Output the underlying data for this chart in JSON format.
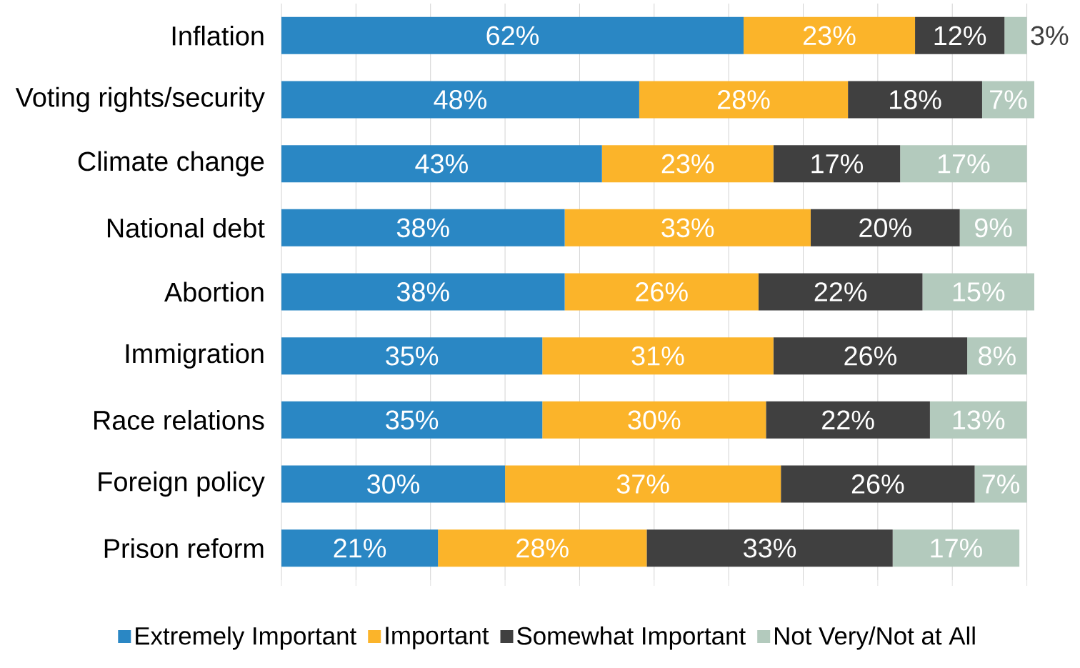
{
  "chart_data": {
    "type": "bar",
    "orientation": "horizontal",
    "stacked": true,
    "categories": [
      "Inflation",
      "Voting rights/security",
      "Climate change",
      "National debt",
      "Abortion",
      "Immigration",
      "Race relations",
      "Foreign policy",
      "Prison reform"
    ],
    "series": [
      {
        "name": "Extremely Important",
        "color": "#2a87c4",
        "values": [
          62,
          48,
          43,
          38,
          38,
          35,
          35,
          30,
          21
        ],
        "value_labels": [
          "62%",
          "48%",
          "43%",
          "38%",
          "38%",
          "35%",
          "35%",
          "30%",
          "21%"
        ]
      },
      {
        "name": "Important",
        "color": "#fbb42a",
        "values": [
          23,
          28,
          23,
          33,
          26,
          31,
          30,
          37,
          28
        ],
        "value_labels": [
          "23%",
          "28%",
          "23%",
          "33%",
          "26%",
          "31%",
          "30%",
          "37%",
          "28%"
        ]
      },
      {
        "name": "Somewhat Important",
        "color": "#404040",
        "values": [
          12,
          18,
          17,
          20,
          22,
          26,
          22,
          26,
          33
        ],
        "value_labels": [
          "12%",
          "18%",
          "17%",
          "20%",
          "22%",
          "26%",
          "22%",
          "26%",
          "33%"
        ]
      },
      {
        "name": "Not Very/Not at All",
        "color": "#b3cabd",
        "values": [
          3,
          7,
          17,
          9,
          15,
          8,
          13,
          7,
          17
        ],
        "value_labels": [
          "3%",
          "7%",
          "17%",
          "9%",
          "15%",
          "8%",
          "13%",
          "7%",
          "17%"
        ]
      }
    ],
    "xlim": [
      0,
      101
    ],
    "xticks": [
      {
        "value": 0,
        "label": null
      },
      {
        "value": 10,
        "label": null
      },
      {
        "value": 20,
        "label": null
      },
      {
        "value": 30,
        "label": null
      },
      {
        "value": 40,
        "label": null
      },
      {
        "value": 50,
        "label": null
      },
      {
        "value": 60,
        "label": null
      },
      {
        "value": 70,
        "label": null
      },
      {
        "value": 80,
        "label": null
      },
      {
        "value": 90,
        "label": null
      },
      {
        "value": 100,
        "label": null
      }
    ],
    "grid": "x",
    "legend": "bottom",
    "tick_labels": "y"
  }
}
